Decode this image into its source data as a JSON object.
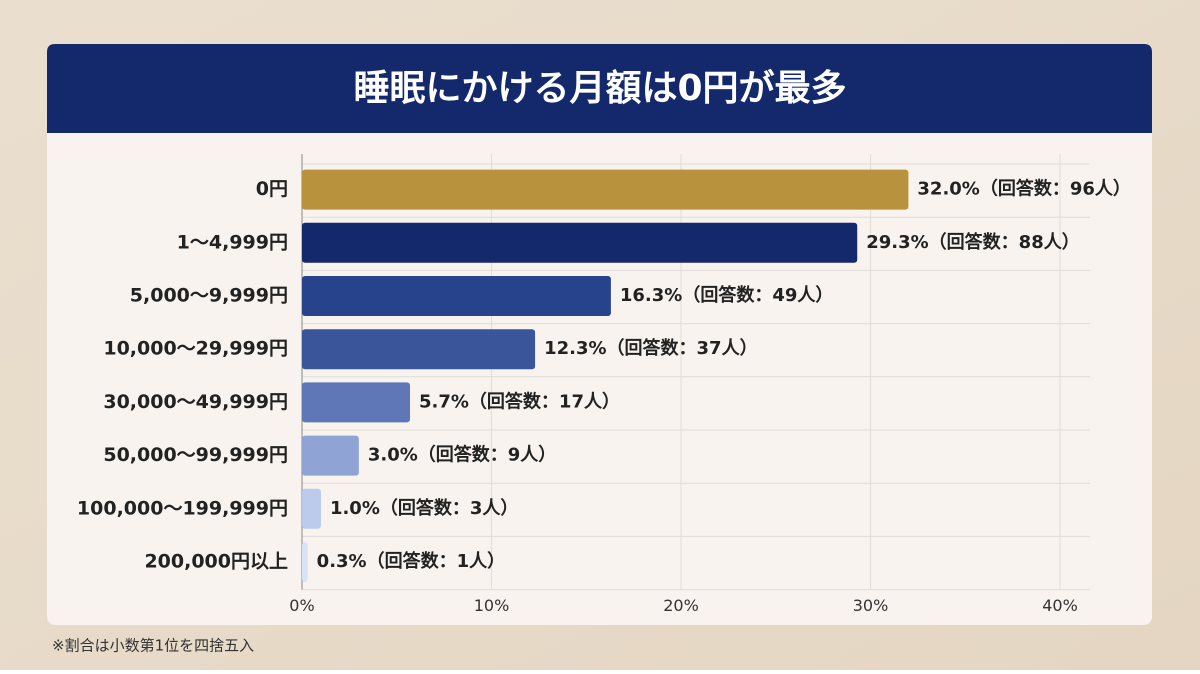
{
  "chart_data": {
    "type": "bar",
    "orientation": "horizontal",
    "title": "睡眠にかける月額は0円が最多",
    "categories": [
      "0円",
      "1〜4,999円",
      "5,000〜9,999円",
      "10,000〜29,999円",
      "30,000〜49,999円",
      "50,000〜99,999円",
      "100,000〜199,999円",
      "200,000円以上"
    ],
    "values": [
      32.0,
      29.3,
      16.3,
      12.3,
      5.7,
      3.0,
      1.0,
      0.3
    ],
    "value_labels": [
      "32.0%（回答数：96人）",
      "29.3%（回答数：88人）",
      "16.3%（回答数：49人）",
      "12.3%（回答数：37人）",
      "5.7%（回答数：17人）",
      "3.0%（回答数：9人）",
      "1.0%（回答数：3人）",
      "0.3%（回答数：1人）"
    ],
    "colors": [
      "#b8923c",
      "#14296b",
      "#27438c",
      "#3a5599",
      "#5f77b6",
      "#8fa3d5",
      "#bccbeb",
      "#d8e3f6"
    ],
    "xlim": [
      0,
      40
    ],
    "xticks": [
      {
        "value": 0,
        "label": "0%"
      },
      {
        "value": 10,
        "label": "10%"
      },
      {
        "value": 20,
        "label": "20%"
      },
      {
        "value": 30,
        "label": "30%"
      },
      {
        "value": 40,
        "label": "40%"
      }
    ],
    "grid": true,
    "footnote": "※割合は小数第1位を四捨五入"
  }
}
